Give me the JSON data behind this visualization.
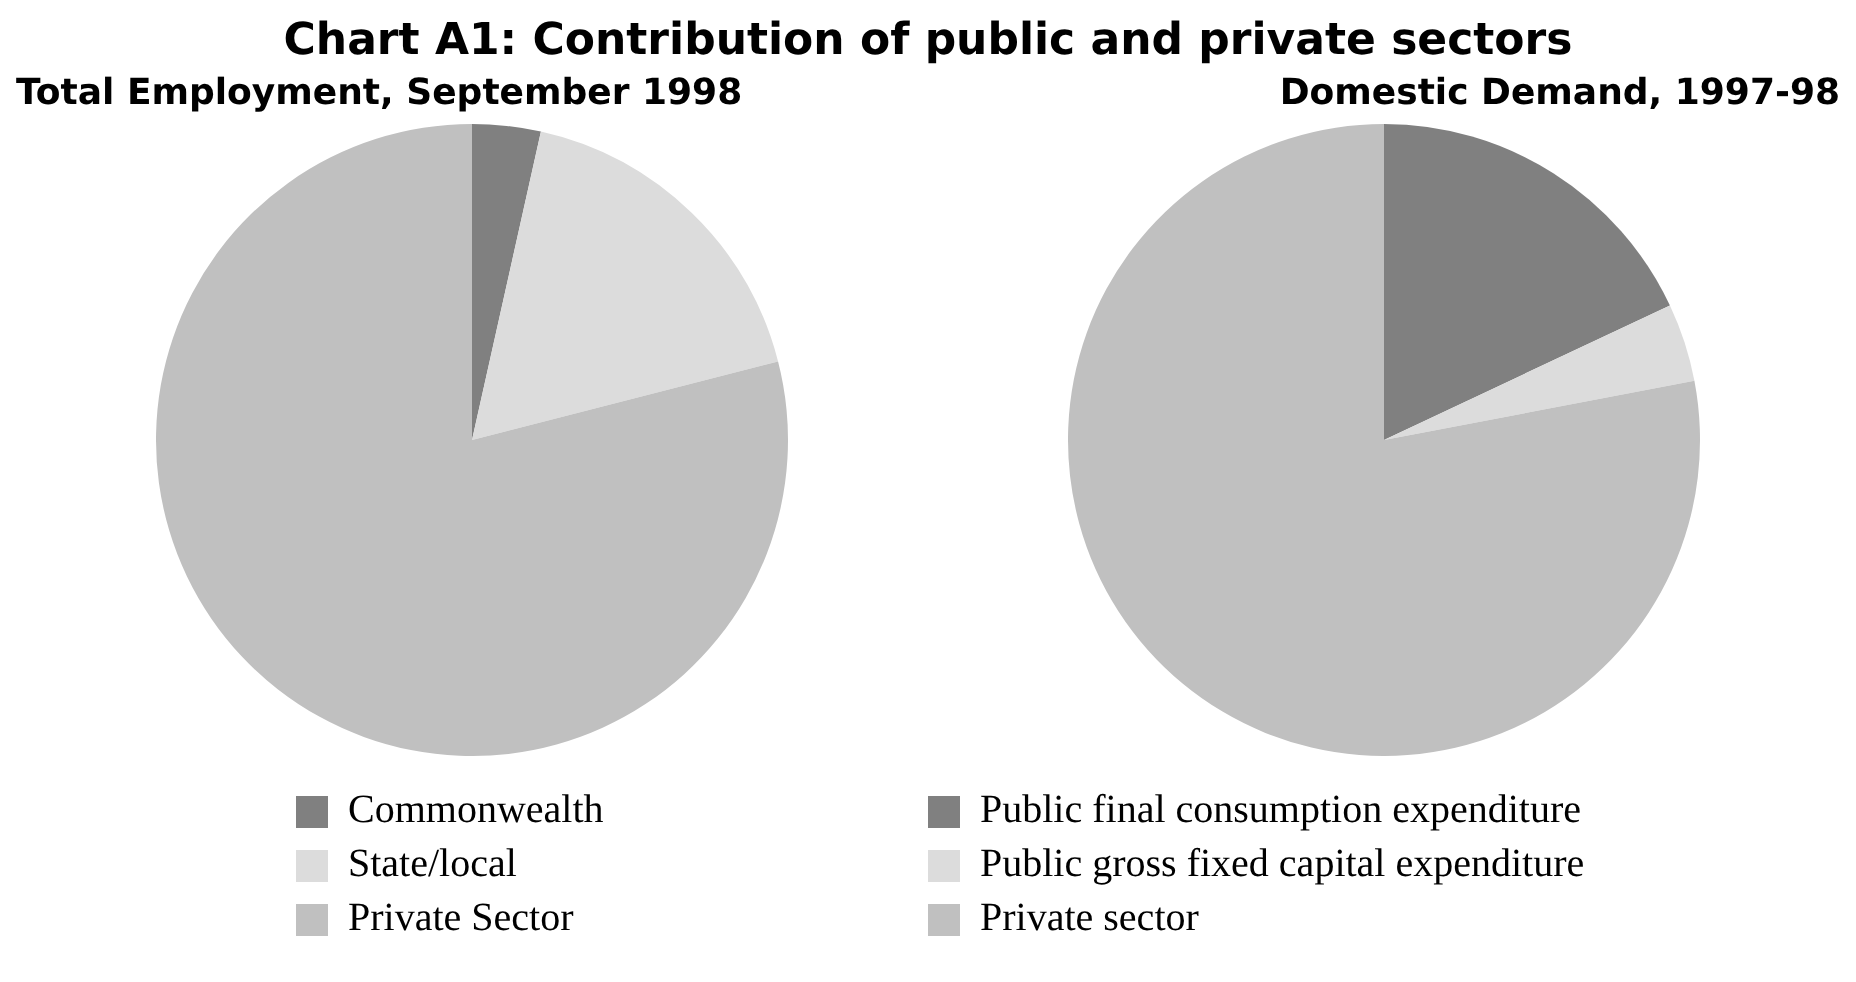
{
  "chart_data": [
    {
      "type": "pie",
      "title": "Chart A1: Contribution of public and private sectors",
      "subtitle": "Total Employment, September 1998",
      "categories": [
        "Commonwealth",
        "State/local",
        "Private Sector"
      ],
      "values": [
        3.5,
        17.5,
        79
      ],
      "colors": [
        "#808080",
        "#dcdcdc",
        "#c0c0c0"
      ],
      "legend": "bottom"
    },
    {
      "type": "pie",
      "subtitle": "Domestic Demand, 1997-98",
      "categories": [
        "Public final consumption expenditure",
        "Public gross fixed capital expenditure",
        "Private sector"
      ],
      "values": [
        18,
        4,
        78
      ],
      "colors": [
        "#808080",
        "#dcdcdc",
        "#c0c0c0"
      ],
      "legend": "bottom"
    }
  ]
}
